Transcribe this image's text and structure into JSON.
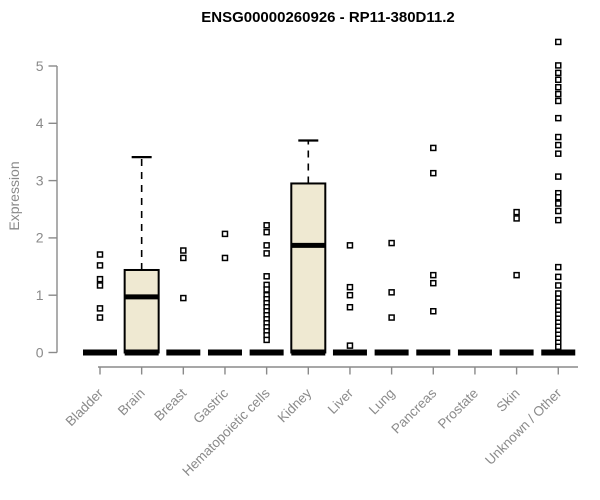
{
  "chart_data": {
    "type": "boxplot",
    "title": "ENSG00000260926 - RP11-380D11.2",
    "ylabel": "Expression",
    "xlabel": "",
    "ylim": [
      0,
      5.45
    ],
    "yticks": [
      0,
      1,
      2,
      3,
      4,
      5
    ],
    "grid": false,
    "legend": false,
    "categories": [
      "Bladder",
      "Brain",
      "Breast",
      "Gastric",
      "Hematopoietic cells",
      "Kidney",
      "Liver",
      "Lung",
      "Pancreas",
      "Prostate",
      "Skin",
      "Unknown / Other"
    ],
    "boxes": [
      {
        "name": "Bladder",
        "median": 0,
        "q1": 0,
        "q3": 0,
        "whisker_low": 0,
        "whisker_high": 0,
        "outliers": [
          1.71,
          1.52,
          1.28,
          1.17,
          0.77,
          0.61
        ]
      },
      {
        "name": "Brain",
        "median": 0.97,
        "q1": 0,
        "q3": 1.44,
        "whisker_low": 0,
        "whisker_high": 3.41,
        "outliers": []
      },
      {
        "name": "Breast",
        "median": 0,
        "q1": 0,
        "q3": 0,
        "whisker_low": 0,
        "whisker_high": 0,
        "outliers": [
          1.78,
          1.65,
          0.95
        ]
      },
      {
        "name": "Gastric",
        "median": 0,
        "q1": 0,
        "q3": 0,
        "whisker_low": 0,
        "whisker_high": 0,
        "outliers": [
          2.07,
          1.65
        ]
      },
      {
        "name": "Hematopoietic cells",
        "median": 0,
        "q1": 0,
        "q3": 0,
        "whisker_low": 0,
        "whisker_high": 0,
        "outliers": [
          2.22,
          2.1,
          1.87,
          1.73,
          1.33,
          1.18,
          1.1,
          1.0,
          0.93,
          0.86,
          0.79,
          0.72,
          0.65,
          0.58,
          0.51,
          0.44,
          0.37,
          0.3,
          0.22
        ]
      },
      {
        "name": "Kidney",
        "median": 1.87,
        "q1": 0,
        "q3": 2.95,
        "whisker_low": 0,
        "whisker_high": 3.7,
        "outliers": []
      },
      {
        "name": "Liver",
        "median": 0,
        "q1": 0,
        "q3": 0,
        "whisker_low": 0,
        "whisker_high": 0,
        "outliers": [
          1.87,
          1.14,
          1.0,
          0.79,
          0.12
        ]
      },
      {
        "name": "Lung",
        "median": 0,
        "q1": 0,
        "q3": 0,
        "whisker_low": 0,
        "whisker_high": 0,
        "outliers": [
          1.91,
          1.05,
          0.61
        ]
      },
      {
        "name": "Pancreas",
        "median": 0,
        "q1": 0,
        "q3": 0,
        "whisker_low": 0,
        "whisker_high": 0,
        "outliers": [
          3.57,
          3.13,
          1.35,
          1.21,
          0.72
        ]
      },
      {
        "name": "Prostate",
        "median": 0,
        "q1": 0,
        "q3": 0,
        "whisker_low": 0,
        "whisker_high": 0,
        "outliers": []
      },
      {
        "name": "Skin",
        "median": 0,
        "q1": 0,
        "q3": 0,
        "whisker_low": 0,
        "whisker_high": 0,
        "outliers": [
          2.45,
          2.34,
          1.35
        ]
      },
      {
        "name": "Unknown / Other",
        "median": 0,
        "q1": 0,
        "q3": 0,
        "whisker_low": 0,
        "whisker_high": 0,
        "outliers": [
          5.42,
          5.01,
          4.88,
          4.76,
          4.63,
          4.51,
          4.39,
          4.09,
          3.76,
          3.62,
          3.47,
          3.07,
          2.78,
          2.71,
          2.6,
          2.47,
          2.31,
          1.49,
          1.32,
          1.17,
          1.03,
          0.94,
          0.87,
          0.8,
          0.73,
          0.66,
          0.59,
          0.52,
          0.45,
          0.38,
          0.31,
          0.24,
          0.17,
          0.1
        ]
      }
    ],
    "colors": {
      "box_fill": "#EFE9D2",
      "box_border": "#000000",
      "median": "#000000",
      "whisker": "#000000",
      "outlier": "#000000",
      "axis": "#8A8A8A",
      "tick_text": "#8A8A8A",
      "title_text": "#000000",
      "background": "#FFFFFF"
    }
  }
}
